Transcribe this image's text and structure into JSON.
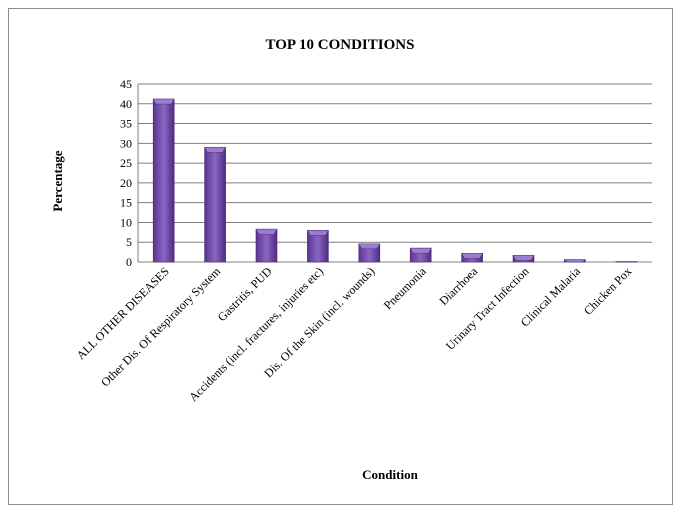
{
  "chart_data": {
    "type": "bar",
    "title": "TOP 10 CONDITIONS",
    "xlabel": "Condition",
    "ylabel": "Percentage",
    "ylim": [
      0,
      45
    ],
    "yticks": [
      "0",
      "5",
      "10",
      "15",
      "20",
      "25",
      "30",
      "35",
      "40",
      "45"
    ],
    "grid": true,
    "categories": [
      "ALL OTHER DISEASES",
      "Other Dis. Of Respiratory System",
      "Gastritis, PUD",
      "Accidents (incl. fractures, injuries etc)",
      "Dis. Of the Skin (incl. wounds)",
      "Pneumonia",
      "Diarrhoea",
      "Urinary Tract Infection",
      "Clinical Malaria",
      "Chicken Pox"
    ],
    "values": [
      41.2,
      29.0,
      8.3,
      8.0,
      4.6,
      3.5,
      2.2,
      1.7,
      0.6,
      0.1
    ],
    "colors": {
      "bar_dark": "#4b2a78",
      "bar_mid": "#7a55b0",
      "bar_light": "#9c7cd0",
      "grid": "#808080",
      "axis": "#808080"
    }
  }
}
